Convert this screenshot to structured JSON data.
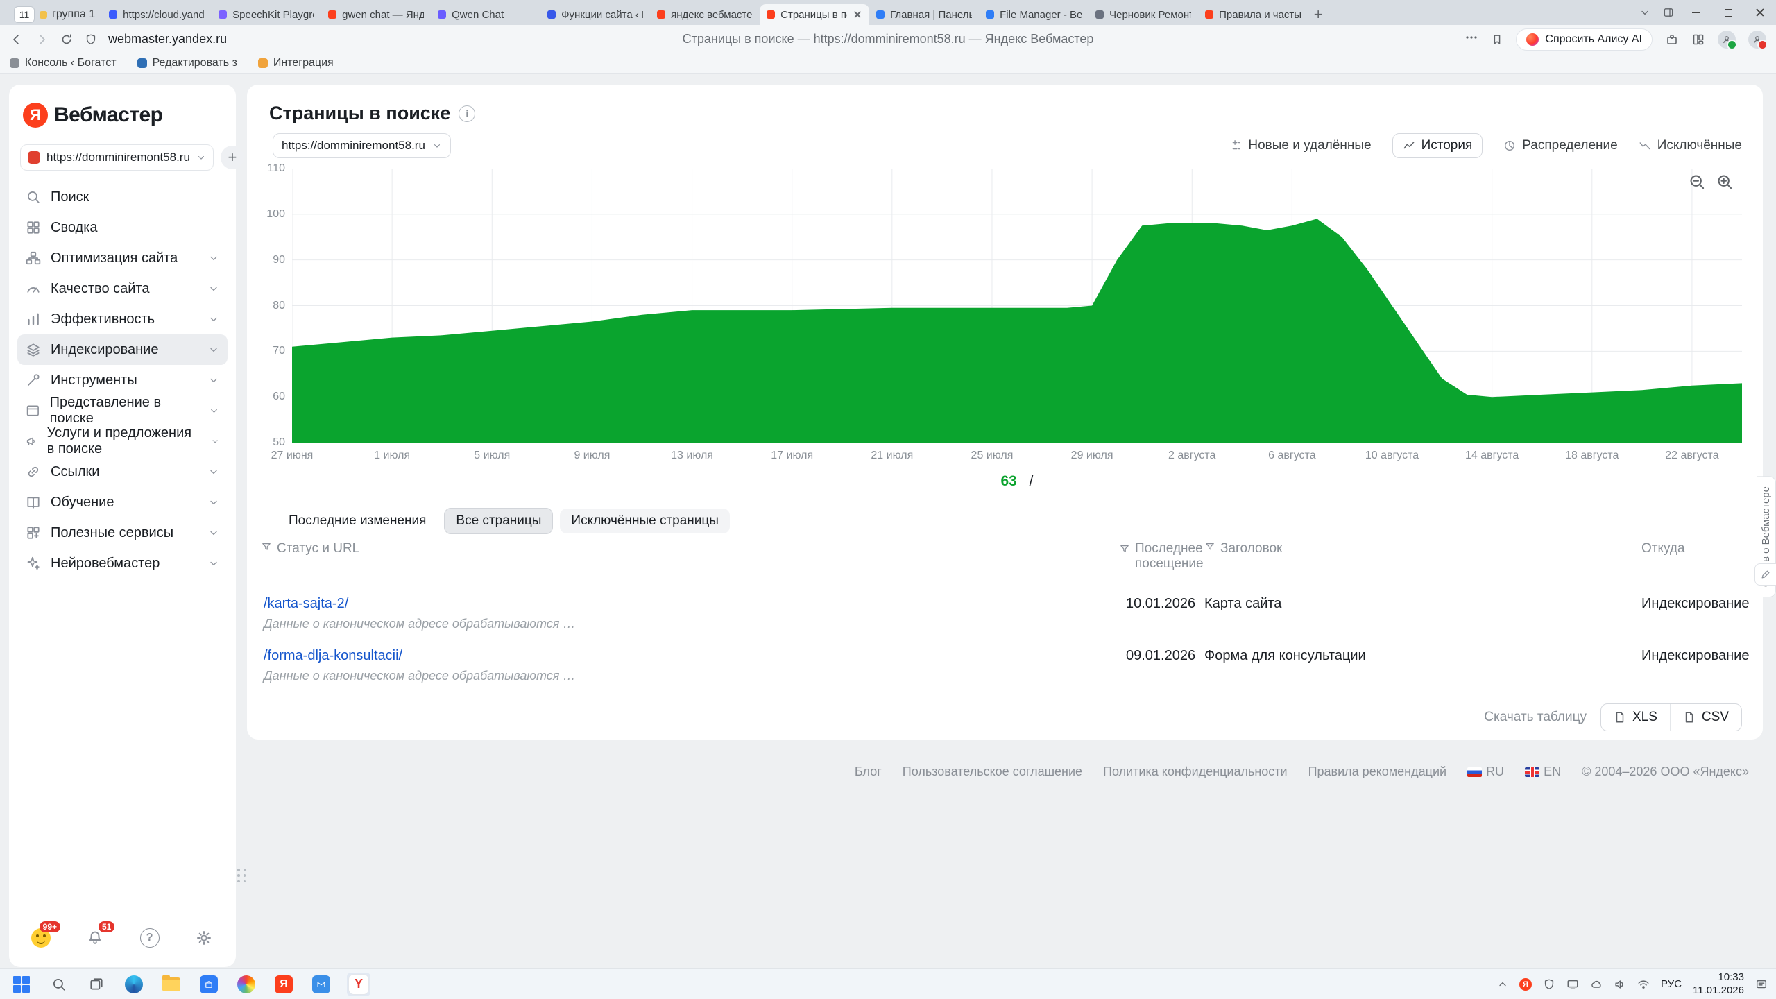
{
  "browser": {
    "tab_group": {
      "count": "11",
      "label": "группа 1"
    },
    "tabs": [
      {
        "label": "https://cloud.yandex.ru",
        "favicon": "#3b5bfd"
      },
      {
        "label": "SpeechKit Playground | Y",
        "favicon": "#7b61ff"
      },
      {
        "label": "gwen chat — Яндекс: на",
        "favicon": "#fc3f1d"
      },
      {
        "label": "Qwen Chat",
        "favicon": "#6a5cff"
      },
      {
        "label": "Функции сайта ‹ Настро",
        "favicon": "#3858e9"
      },
      {
        "label": "яндекс вебмастер — Ян",
        "favicon": "#fc3f1d"
      },
      {
        "label": "Страницы в поиске —",
        "favicon": "#fc3f1d",
        "active": true
      },
      {
        "label": "Главная | Панель управ",
        "favicon": "#2f7df6"
      },
      {
        "label": "File Manager - Beget",
        "favicon": "#2f7df6"
      },
      {
        "label": "Черновик Ремонт свои",
        "favicon": "#6b7280"
      },
      {
        "label": "Правила и частые вопр",
        "favicon": "#fc3f1d"
      }
    ],
    "new_tab_label": "+",
    "toolbar": {
      "url": "webmaster.yandex.ru",
      "page_title": "Страницы в поиске — https://domminiremont58.ru — Яндекс Вебмастер",
      "alisa_button": "Спросить Алису AI"
    },
    "bookmarks": [
      {
        "label": "Консоль ‹ Богатст"
      },
      {
        "label": "Редактировать з"
      },
      {
        "label": "Интеграция"
      }
    ]
  },
  "sidebar": {
    "logo_letter": "Я",
    "logo": "Вебмастер",
    "site_selector": {
      "url": "https://domminiremont58.ru"
    },
    "add_button": "+",
    "items": [
      {
        "label": "Поиск"
      },
      {
        "label": "Сводка"
      },
      {
        "label": "Оптимизация сайта"
      },
      {
        "label": "Качество сайта"
      },
      {
        "label": "Эффективность"
      },
      {
        "label": "Индексирование"
      },
      {
        "label": "Инструменты"
      },
      {
        "label": "Представление в поиске"
      },
      {
        "label": "Услуги и предложения в поиске"
      },
      {
        "label": "Ссылки"
      },
      {
        "label": "Обучение"
      },
      {
        "label": "Полезные сервисы"
      },
      {
        "label": "Нейровебмастер"
      }
    ],
    "footer_icons": {
      "mood_badge": "99+",
      "bell_badge": "51",
      "help_label": "?"
    }
  },
  "main": {
    "title": "Страницы в поиске",
    "site_chip": "https://domminiremont58.ru",
    "view_tabs": [
      {
        "label": "Новые и удалённые"
      },
      {
        "label": "История"
      },
      {
        "label": "Распределение"
      },
      {
        "label": "Исключённые"
      }
    ],
    "legend": {
      "value": "63",
      "label": "/"
    },
    "sub_tabs": [
      {
        "label": "Последние изменения"
      },
      {
        "label": "Все страницы"
      },
      {
        "label": "Исключённые страницы"
      }
    ],
    "table": {
      "columns": [
        "Статус и URL",
        "Последнее посещение",
        "Заголовок",
        "Откуда"
      ],
      "rows": [
        {
          "url": "/karta-sajta-2/",
          "note": "Данные о каноническом адресе обрабатываются …",
          "visited": "10.01.2026",
          "title": "Карта сайта",
          "source": "Индексирование"
        },
        {
          "url": "/forma-dlja-konsultacii/",
          "note": "Данные о каноническом адресе обрабатываются …",
          "visited": "09.01.2026",
          "title": "Форма для консультации",
          "source": "Индексирование"
        }
      ]
    },
    "download": {
      "label": "Скачать таблицу",
      "xls": "XLS",
      "csv": "CSV"
    }
  },
  "chart_data": {
    "type": "area",
    "title": "Страницы в поиске — История",
    "color": "#0aa42e",
    "x_labels": [
      "27 июня",
      "1 июля",
      "5 июля",
      "9 июля",
      "13 июля",
      "17 июля",
      "21 июля",
      "25 июля",
      "29 июля",
      "2 августа",
      "6 августа",
      "10 августа",
      "14 августа",
      "18 августа",
      "22 августа"
    ],
    "x_label_positions": [
      0,
      4,
      8,
      12,
      16,
      20,
      24,
      28,
      32,
      36,
      40,
      44,
      48,
      52,
      56
    ],
    "x_max": 58,
    "ylim": [
      50,
      110
    ],
    "yticks": [
      50,
      60,
      70,
      80,
      90,
      100,
      110
    ],
    "grid": true,
    "points": [
      [
        0,
        71
      ],
      [
        2,
        72
      ],
      [
        4,
        73
      ],
      [
        6,
        73.5
      ],
      [
        8,
        74.5
      ],
      [
        10,
        75.5
      ],
      [
        12,
        76.5
      ],
      [
        14,
        78
      ],
      [
        16,
        79
      ],
      [
        20,
        79
      ],
      [
        24,
        79.5
      ],
      [
        28,
        79.5
      ],
      [
        31,
        79.5
      ],
      [
        32,
        80
      ],
      [
        33,
        90
      ],
      [
        34,
        97.5
      ],
      [
        35,
        98
      ],
      [
        37,
        98
      ],
      [
        38,
        97.5
      ],
      [
        39,
        96.5
      ],
      [
        40,
        97.5
      ],
      [
        41,
        99
      ],
      [
        42,
        95
      ],
      [
        43,
        88
      ],
      [
        44,
        80
      ],
      [
        45,
        72
      ],
      [
        46,
        64
      ],
      [
        47,
        60.5
      ],
      [
        48,
        60
      ],
      [
        50,
        60.5
      ],
      [
        52,
        61
      ],
      [
        54,
        61.5
      ],
      [
        56,
        62.5
      ],
      [
        58,
        63
      ]
    ],
    "current_value": 63,
    "current_series": "/"
  },
  "footer": {
    "links": [
      "Блог",
      "Пользовательское соглашение",
      "Политика конфиденциальности",
      "Правила рекомендаций"
    ],
    "lang_ru": "RU",
    "lang_en": "EN",
    "copyright": "© 2004–2026 ООО «Яндекс»"
  },
  "feedback_tab": "Отзыв о Вебмастере",
  "taskbar": {
    "lang": "РУС",
    "time": "10:33",
    "date": "11.01.2026",
    "yandex_letter": "Я",
    "browser_letter": "Y"
  }
}
